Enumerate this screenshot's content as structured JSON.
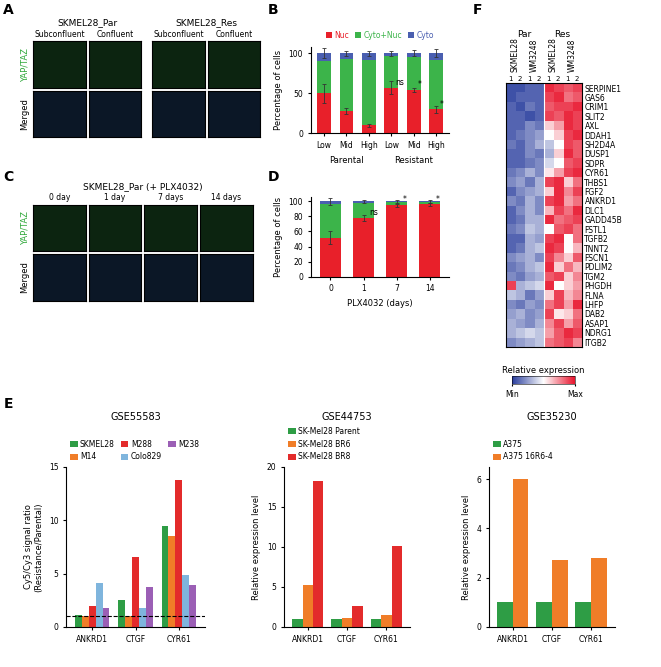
{
  "chart_data": [
    {
      "panel": "A",
      "type": "image",
      "groups": [
        {
          "label": "SKMEL28_Par",
          "columns": [
            "Subconfluent",
            "Confluent"
          ]
        },
        {
          "label": "SKMEL28_Res",
          "columns": [
            "Subconfluent",
            "Confluent"
          ]
        }
      ],
      "rows": [
        {
          "label": "YAP/TAZ",
          "color": "#2fa83a"
        },
        {
          "label": "Merged",
          "color": "#000000"
        }
      ]
    },
    {
      "panel": "B",
      "type": "bar",
      "stacked": true,
      "legend": "top",
      "ylabel": "Percentage of cells",
      "groups": [
        {
          "label": "Parental",
          "categories": [
            "Low",
            "Mid",
            "High"
          ]
        },
        {
          "label": "Resistant",
          "categories": [
            "Low",
            "Mid",
            "High"
          ]
        }
      ],
      "series": [
        {
          "name": "Nuc",
          "color": "#e8202a",
          "values": [
            50,
            28,
            10,
            57,
            54,
            30
          ],
          "errors": [
            12,
            4,
            2,
            8,
            3,
            4
          ]
        },
        {
          "name": "Cyto+Nuc",
          "color": "#3cb44a",
          "values": [
            40,
            65,
            82,
            39,
            41,
            62
          ]
        },
        {
          "name": "Cyto",
          "color": "#4a5fb0",
          "values": [
            10,
            7,
            8,
            4,
            5,
            8
          ],
          "errors": [
            6,
            3,
            3,
            3,
            4,
            5
          ]
        }
      ],
      "significance": [
        null,
        null,
        null,
        "ns",
        "*",
        "*"
      ],
      "ylim": [
        0,
        108
      ],
      "yticks": [
        0,
        50,
        100
      ]
    },
    {
      "panel": "C",
      "type": "image",
      "title": "SKMEL28_Par (+ PLX4032)",
      "columns": [
        "0 day",
        "1 day",
        "7 days",
        "14 days"
      ],
      "rows": [
        {
          "label": "YAP/TAZ",
          "color": "#2fa83a"
        },
        {
          "label": "Merged",
          "color": "#000000"
        }
      ]
    },
    {
      "panel": "D",
      "type": "bar",
      "stacked": true,
      "xlabel": "PLX4032 (days)",
      "ylabel": "Percentage of cells",
      "categories": [
        "0",
        "1",
        "7",
        "14"
      ],
      "series": [
        {
          "name": "Nuc",
          "color": "#e8202a",
          "values": [
            52,
            78,
            95,
            96
          ],
          "errors": [
            8,
            4,
            2,
            2
          ]
        },
        {
          "name": "Cyto+Nuc",
          "color": "#3cb44a",
          "values": [
            45,
            20,
            4,
            3
          ]
        },
        {
          "name": "Cyto",
          "color": "#4a5fb0",
          "values": [
            3,
            2,
            1,
            1
          ],
          "errors": [
            5,
            2,
            2,
            2
          ]
        }
      ],
      "significance": [
        null,
        "ns",
        "*",
        "*"
      ],
      "ylim": [
        0,
        106
      ],
      "yticks": [
        0,
        20,
        40,
        60,
        80,
        100
      ]
    },
    {
      "panel": "E",
      "type": "bar",
      "title": "GSE55583",
      "legend": "top",
      "ylabel": "Cy5/Cy3 signal ratio\n(Resistance/Parental)",
      "categories": [
        "ANKRD1",
        "CTGF",
        "CYR61"
      ],
      "series": [
        {
          "name": "SKMEL28",
          "color": "#2e9d45",
          "values": [
            1.1,
            2.5,
            9.5
          ]
        },
        {
          "name": "M14",
          "color": "#f07d28",
          "values": [
            1.0,
            1.0,
            8.5
          ]
        },
        {
          "name": "M288",
          "color": "#e32b2b",
          "values": [
            2.0,
            6.6,
            13.8
          ]
        },
        {
          "name": "Colo829",
          "color": "#7fb5dd",
          "values": [
            4.1,
            1.8,
            4.9
          ]
        },
        {
          "name": "M238",
          "color": "#9b5fb5",
          "values": [
            1.8,
            3.7,
            3.9
          ]
        }
      ],
      "reference_value": 1,
      "ylim": [
        0,
        15
      ],
      "yticks": [
        0,
        5,
        10,
        15
      ]
    },
    {
      "type": "bar",
      "title": "GSE44753",
      "legend": "top",
      "ylabel": "Relative expression level",
      "categories": [
        "ANKRD1",
        "CTGF",
        "CYR61"
      ],
      "series": [
        {
          "name": "SK-Mel28 Parent",
          "color": "#2e9d45",
          "values": [
            1,
            1,
            1
          ]
        },
        {
          "name": "SK-Mel28 BR6",
          "color": "#f07d28",
          "values": [
            5.2,
            1.1,
            1.5
          ]
        },
        {
          "name": "SK-Mel28 BR8",
          "color": "#e32b2b",
          "values": [
            18.2,
            2.6,
            10.1
          ]
        }
      ],
      "ylim": [
        0,
        20
      ],
      "yticks": [
        0,
        5,
        10,
        15,
        20
      ]
    },
    {
      "type": "bar",
      "title": "GSE35230",
      "legend": "top",
      "ylabel": "Relative expression level",
      "categories": [
        "ANKRD1",
        "CTGF",
        "CYR61"
      ],
      "series": [
        {
          "name": "A375",
          "color": "#2e9d45",
          "values": [
            1,
            1,
            1
          ]
        },
        {
          "name": "A375 16R6-4",
          "color": "#f07d28",
          "values": [
            6.0,
            2.7,
            2.8
          ]
        }
      ],
      "ylim": [
        0,
        6.5
      ],
      "yticks": [
        0,
        2,
        4,
        6
      ]
    },
    {
      "panel": "F",
      "type": "heatmap",
      "column_groups": [
        {
          "label": "Par",
          "cell_lines": [
            {
              "label": "SKMEL28",
              "replicates": [
                "1",
                "2"
              ]
            },
            {
              "label": "WM3248",
              "replicates": [
                "1",
                "2"
              ]
            }
          ]
        },
        {
          "label": "Res",
          "cell_lines": [
            {
              "label": "SKMEL28",
              "replicates": [
                "1",
                "2"
              ]
            },
            {
              "label": "WM3248",
              "replicates": [
                "1",
                "2"
              ]
            }
          ]
        }
      ],
      "rows": [
        "SERPINE1",
        "GAS6",
        "CRIM1",
        "SLIT2",
        "AXL",
        "DDAH1",
        "SH2D4A",
        "DUSP1",
        "SDPR",
        "CYR61",
        "THBS1",
        "FGF2",
        "ANKRD1",
        "DLC1",
        "GADD45B",
        "FSTL1",
        "TGFB2",
        "TNNT2",
        "FSCN1",
        "PDLIM2",
        "TGM2",
        "PHGDH",
        "FLNA",
        "LHFP",
        "DAB2",
        "ASAP1",
        "NDRG1",
        "ITGB2"
      ],
      "cells": [
        [
          0.05,
          0.05,
          0.1,
          0.1,
          0.95,
          0.9,
          0.85,
          0.9
        ],
        [
          0.05,
          0.1,
          0.1,
          0.1,
          0.9,
          0.95,
          0.8,
          0.85
        ],
        [
          0.1,
          0.05,
          0.15,
          0.1,
          0.85,
          0.9,
          0.9,
          0.95
        ],
        [
          0.1,
          0.1,
          0.05,
          0.1,
          0.9,
          0.85,
          0.95,
          0.9
        ],
        [
          0.1,
          0.1,
          0.2,
          0.15,
          0.6,
          0.7,
          0.95,
          0.9
        ],
        [
          0.1,
          0.15,
          0.2,
          0.25,
          0.5,
          0.6,
          0.9,
          0.95
        ],
        [
          0.15,
          0.1,
          0.2,
          0.3,
          0.35,
          0.5,
          0.9,
          0.85
        ],
        [
          0.1,
          0.1,
          0.2,
          0.15,
          0.3,
          0.6,
          0.95,
          0.85
        ],
        [
          0.1,
          0.1,
          0.15,
          0.2,
          0.4,
          0.5,
          0.85,
          0.9
        ],
        [
          0.15,
          0.2,
          0.3,
          0.2,
          0.55,
          0.7,
          0.9,
          0.95
        ],
        [
          0.2,
          0.25,
          0.15,
          0.3,
          0.9,
          0.95,
          0.6,
          0.8
        ],
        [
          0.1,
          0.2,
          0.25,
          0.3,
          0.6,
          0.95,
          0.75,
          0.9
        ],
        [
          0.2,
          0.15,
          0.3,
          0.2,
          0.9,
          0.95,
          0.7,
          0.8
        ],
        [
          0.1,
          0.2,
          0.3,
          0.2,
          0.65,
          0.9,
          0.8,
          0.95
        ],
        [
          0.1,
          0.15,
          0.3,
          0.3,
          0.95,
          0.8,
          0.85,
          0.9
        ],
        [
          0.15,
          0.2,
          0.35,
          0.3,
          0.5,
          0.85,
          0.9,
          0.8
        ],
        [
          0.1,
          0.1,
          0.3,
          0.25,
          0.9,
          0.95,
          0.5,
          0.8
        ],
        [
          0.1,
          0.15,
          0.3,
          0.35,
          0.95,
          0.9,
          0.5,
          0.65
        ],
        [
          0.2,
          0.25,
          0.3,
          0.2,
          0.9,
          0.75,
          0.6,
          0.85
        ],
        [
          0.15,
          0.2,
          0.3,
          0.35,
          0.95,
          0.6,
          0.8,
          0.65
        ],
        [
          0.2,
          0.15,
          0.25,
          0.3,
          0.85,
          0.9,
          0.6,
          0.75
        ],
        [
          0.9,
          0.3,
          0.35,
          0.4,
          0.95,
          0.5,
          0.6,
          0.7
        ],
        [
          0.35,
          0.3,
          0.15,
          0.25,
          0.6,
          0.9,
          0.65,
          0.75
        ],
        [
          0.2,
          0.15,
          0.25,
          0.2,
          0.8,
          0.9,
          0.7,
          0.95
        ],
        [
          0.25,
          0.3,
          0.2,
          0.25,
          0.9,
          0.55,
          0.6,
          0.8
        ],
        [
          0.3,
          0.25,
          0.2,
          0.3,
          0.75,
          0.9,
          0.7,
          0.85
        ],
        [
          0.3,
          0.35,
          0.4,
          0.35,
          0.7,
          0.85,
          0.95,
          0.9
        ],
        [
          0.2,
          0.25,
          0.3,
          0.35,
          0.8,
          0.85,
          0.9,
          0.75
        ]
      ],
      "colorbar": {
        "label": "Relative expression",
        "range": [
          0,
          1
        ],
        "ticks": [
          {
            "value": 0,
            "label": "Min"
          },
          {
            "value": 1,
            "label": "Max"
          }
        ]
      }
    }
  ]
}
